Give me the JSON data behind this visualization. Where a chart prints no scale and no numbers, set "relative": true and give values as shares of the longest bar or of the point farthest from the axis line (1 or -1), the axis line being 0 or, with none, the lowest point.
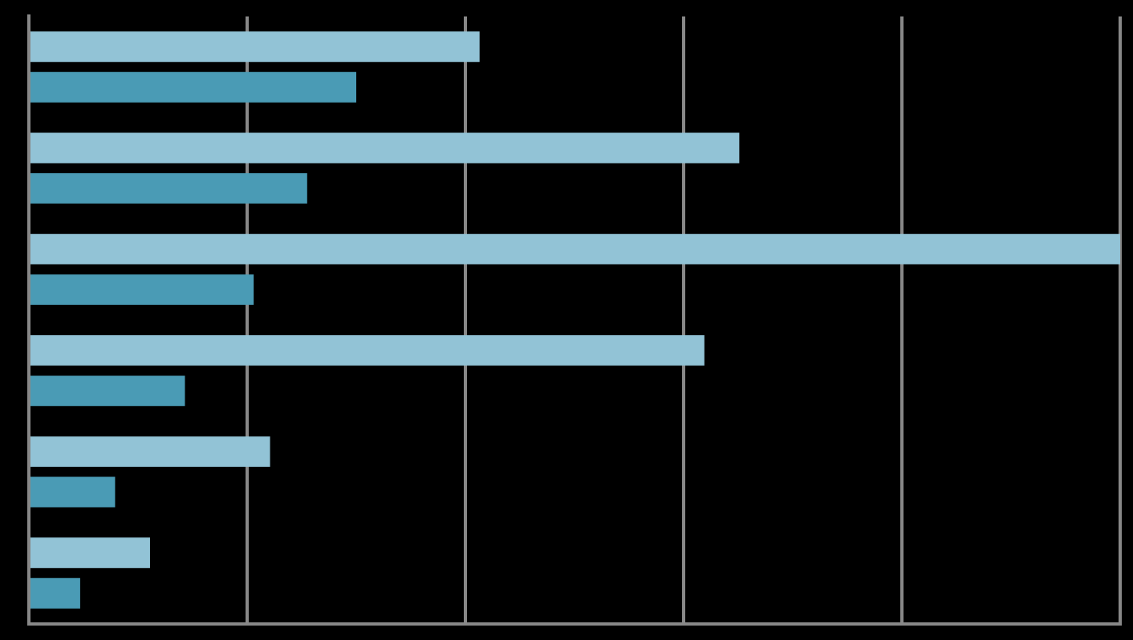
{
  "chart_data": {
    "type": "bar",
    "orientation": "horizontal",
    "relative": true,
    "grid": "x",
    "legend": false,
    "categories": [
      null,
      null,
      null,
      null,
      null,
      null
    ],
    "series": [
      {
        "color": "#92c3d6",
        "values": [
          0.413,
          0.651,
          1,
          0.619,
          0.221,
          0.111
        ]
      },
      {
        "color": "#4a9bb5",
        "values": [
          0.3,
          0.255,
          0.206,
          0.143,
          0.079,
          0.047
        ]
      }
    ]
  }
}
